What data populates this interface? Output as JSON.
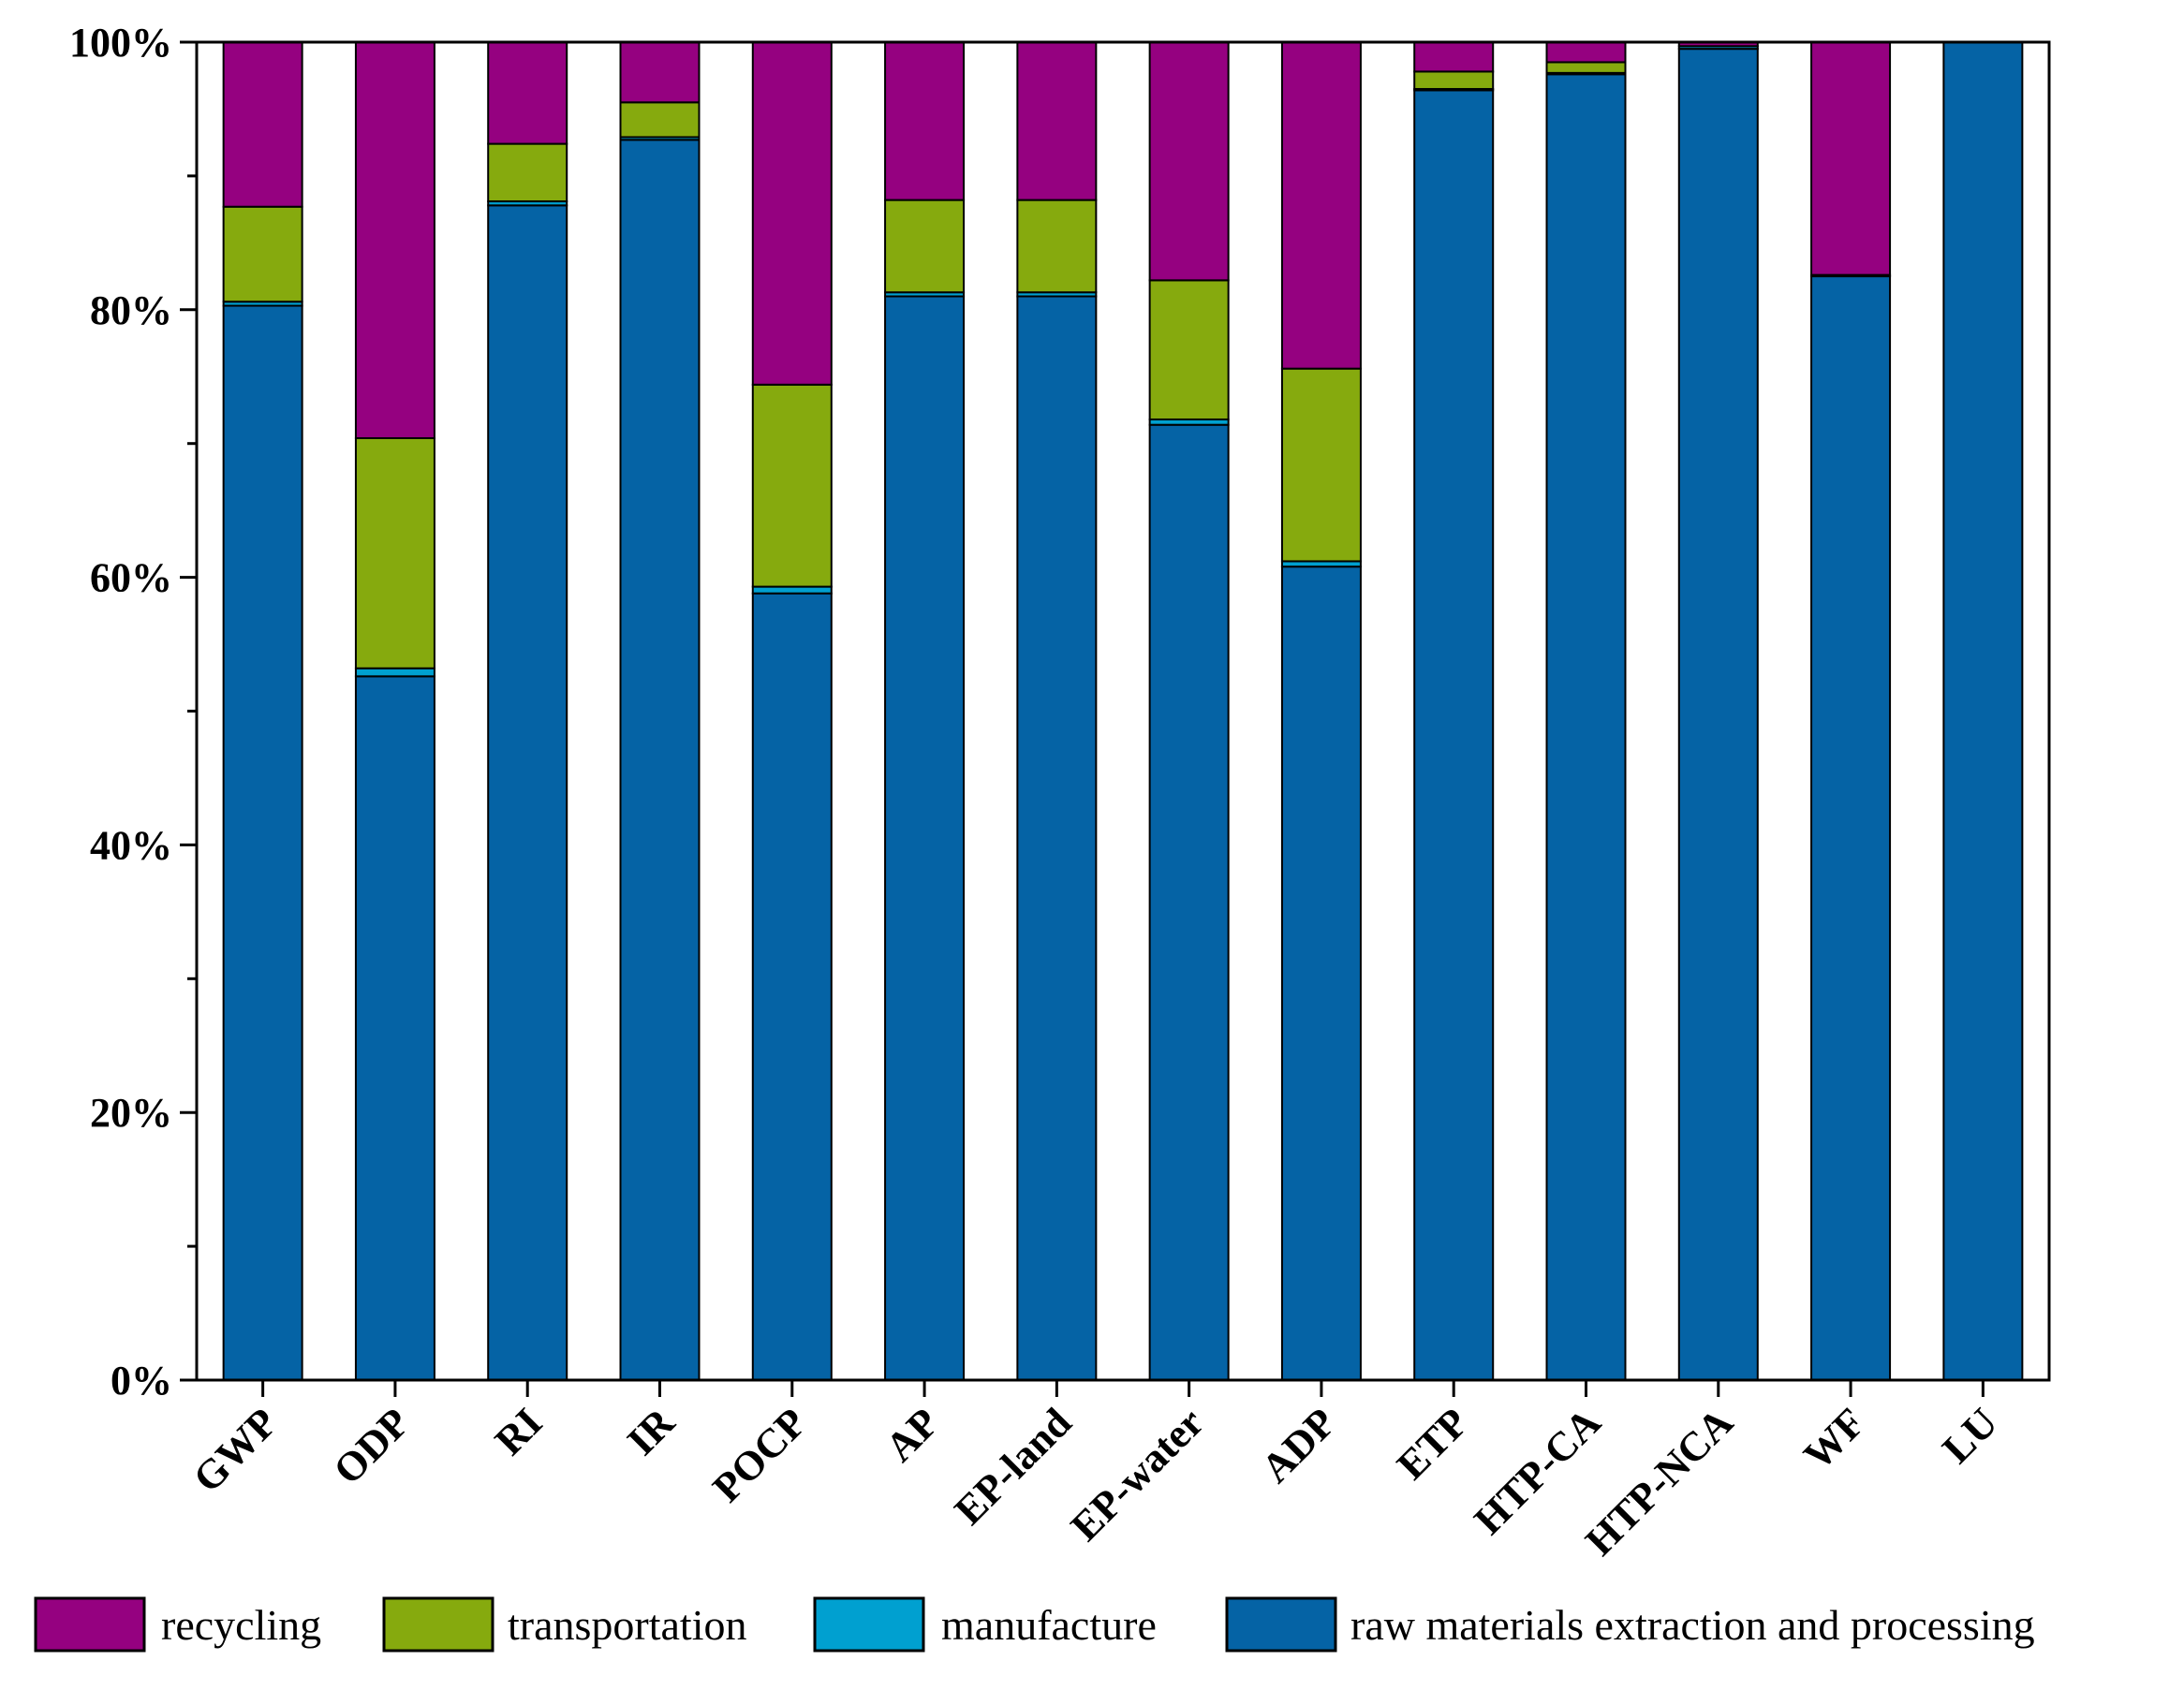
{
  "chart_data": {
    "type": "bar",
    "stacked": true,
    "percent": true,
    "title": "",
    "xlabel": "",
    "ylabel": "",
    "ylim": [
      0,
      100
    ],
    "y_ticks": [
      "0%",
      "20%",
      "40%",
      "60%",
      "80%",
      "100%"
    ],
    "y_tick_values": [
      0,
      20,
      40,
      60,
      80,
      100
    ],
    "y_minor_ticks": [
      10,
      30,
      50,
      70,
      90
    ],
    "categories": [
      "GWP",
      "ODP",
      "RI",
      "IR",
      "POCP",
      "AP",
      "EP-land",
      "EP-water",
      "ADP",
      "ETP",
      "HTP-CA",
      "HTP-NCA",
      "WF",
      "LU"
    ],
    "series": [
      {
        "name": "raw materials extraction and processing",
        "color": "#0563a5",
        "values": [
          80.3,
          52.6,
          87.8,
          92.7,
          58.8,
          81.0,
          81.0,
          71.4,
          60.8,
          96.4,
          97.6,
          99.5,
          82.5,
          100.0
        ]
      },
      {
        "name": "manufacture",
        "color": "#00a0d0",
        "values": [
          0.3,
          0.6,
          0.3,
          0.2,
          0.5,
          0.3,
          0.3,
          0.4,
          0.4,
          0.1,
          0.1,
          0.2,
          0.1,
          0.0
        ]
      },
      {
        "name": "transportation",
        "color": "#86aa0e",
        "values": [
          7.1,
          17.2,
          4.3,
          2.6,
          15.1,
          6.9,
          6.9,
          10.4,
          14.4,
          1.3,
          0.8,
          0.0,
          0.0,
          0.0
        ]
      },
      {
        "name": "recycling",
        "color": "#950180",
        "values": [
          12.3,
          29.6,
          7.6,
          4.5,
          25.6,
          11.8,
          11.8,
          17.8,
          24.4,
          2.2,
          1.5,
          0.3,
          17.4,
          0.0
        ]
      }
    ],
    "legend": {
      "placement": "bottom",
      "entries": [
        "recycling",
        "transportation",
        "manufacture",
        "raw materials extraction and processing"
      ]
    }
  }
}
